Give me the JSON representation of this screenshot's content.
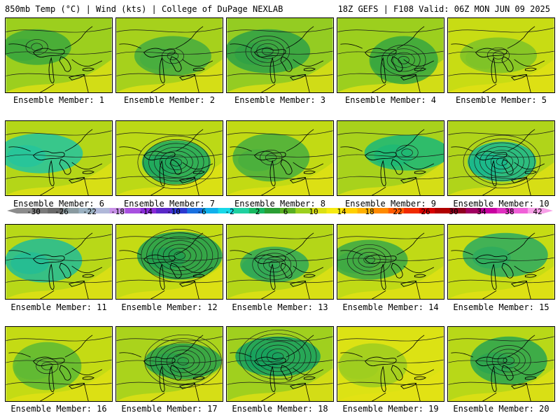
{
  "header": {
    "left": "850mb Temp (°C) | Wind (kts) | College of DuPage NEXLAB",
    "right": "18Z GEFS | F108 Valid: 06Z MON JUN 09 2025"
  },
  "members": [
    {
      "label": "Ensemble Member: 1",
      "base": "#9ccf1e",
      "cool": "#3ca83c",
      "lows": 1,
      "lowStrength": "weak"
    },
    {
      "label": "Ensemble Member: 2",
      "base": "#a6d11c",
      "cool": "#44ac40",
      "lows": 1,
      "lowStrength": "weak"
    },
    {
      "label": "Ensemble Member: 3",
      "base": "#94cc22",
      "cool": "#2ea046",
      "lows": 1,
      "lowStrength": "moderate"
    },
    {
      "label": "Ensemble Member: 4",
      "base": "#9ccf1e",
      "cool": "#36a640",
      "lows": 1,
      "lowStrength": "moderate"
    },
    {
      "label": "Ensemble Member: 5",
      "base": "#c8dc14",
      "cool": "#7cc228",
      "lows": 1,
      "lowStrength": "weak"
    },
    {
      "label": "Ensemble Member: 6",
      "base": "#b4d618",
      "cool": "#22c4a0",
      "lows": 0,
      "lowStrength": "none"
    },
    {
      "label": "Ensemble Member: 7",
      "base": "#bcd916",
      "cool": "#1aa860",
      "lows": 1,
      "lowStrength": "strong"
    },
    {
      "label": "Ensemble Member: 8",
      "base": "#c2da14",
      "cool": "#46ae3e",
      "lows": 1,
      "lowStrength": "weak"
    },
    {
      "label": "Ensemble Member: 9",
      "base": "#a8d21c",
      "cool": "#1ab878",
      "lows": 1,
      "lowStrength": "weak"
    },
    {
      "label": "Ensemble Member: 10",
      "base": "#b0d41a",
      "cool": "#16b890",
      "lows": 1,
      "lowStrength": "strong"
    },
    {
      "label": "Ensemble Member: 11",
      "base": "#b8d818",
      "cool": "#20bc98",
      "lows": 0,
      "lowStrength": "none"
    },
    {
      "label": "Ensemble Member: 12",
      "base": "#c4db14",
      "cool": "#1c9c50",
      "lows": 1,
      "lowStrength": "strong"
    },
    {
      "label": "Ensemble Member: 13",
      "base": "#b4d618",
      "cool": "#2ea858",
      "lows": 1,
      "lowStrength": "moderate"
    },
    {
      "label": "Ensemble Member: 14",
      "base": "#c0da16",
      "cool": "#3aa846",
      "lows": 1,
      "lowStrength": "moderate"
    },
    {
      "label": "Ensemble Member: 15",
      "base": "#c6dc14",
      "cool": "#2aaa60",
      "lows": 0,
      "lowStrength": "none"
    },
    {
      "label": "Ensemble Member: 16",
      "base": "#c4db14",
      "cool": "#5cb834",
      "lows": 1,
      "lowStrength": "weak"
    },
    {
      "label": "Ensemble Member: 17",
      "base": "#aad31c",
      "cool": "#28a04a",
      "lows": 1,
      "lowStrength": "strong"
    },
    {
      "label": "Ensemble Member: 18",
      "base": "#a0d01e",
      "cool": "#12a060",
      "lows": 1,
      "lowStrength": "strong"
    },
    {
      "label": "Ensemble Member: 19",
      "base": "#dce214",
      "cool": "#9ccd20",
      "lows": 0,
      "lowStrength": "none"
    },
    {
      "label": "Ensemble Member: 20",
      "base": "#b8d818",
      "cool": "#28a450",
      "lows": 1,
      "lowStrength": "moderate"
    }
  ],
  "colorbar": {
    "labels": [
      "-30",
      "-26",
      "-22",
      "-18",
      "-14",
      "-10",
      "-6",
      "-2",
      "2",
      "6",
      "10",
      "14",
      "18",
      "22",
      "26",
      "30",
      "34",
      "38",
      "42"
    ],
    "colors": [
      "#8c8c8c",
      "#7a7a7a",
      "#696969",
      "#8a9aa0",
      "#9ab0c0",
      "#b0b8d8",
      "#c890e8",
      "#a850e0",
      "#8a2cd8",
      "#5a28c8",
      "#2c38d0",
      "#1a70e0",
      "#10b0ec",
      "#18d8e8",
      "#20d0a0",
      "#18b860",
      "#2a9e34",
      "#5aae22",
      "#9ccf1e",
      "#dbe014",
      "#f6ea10",
      "#ffd000",
      "#ffb000",
      "#ff8a00",
      "#ff5a00",
      "#f02a00",
      "#d80000",
      "#b00000",
      "#900020",
      "#a00060",
      "#c800a0",
      "#e030c0",
      "#f060d8",
      "#f8a0e8"
    ]
  }
}
